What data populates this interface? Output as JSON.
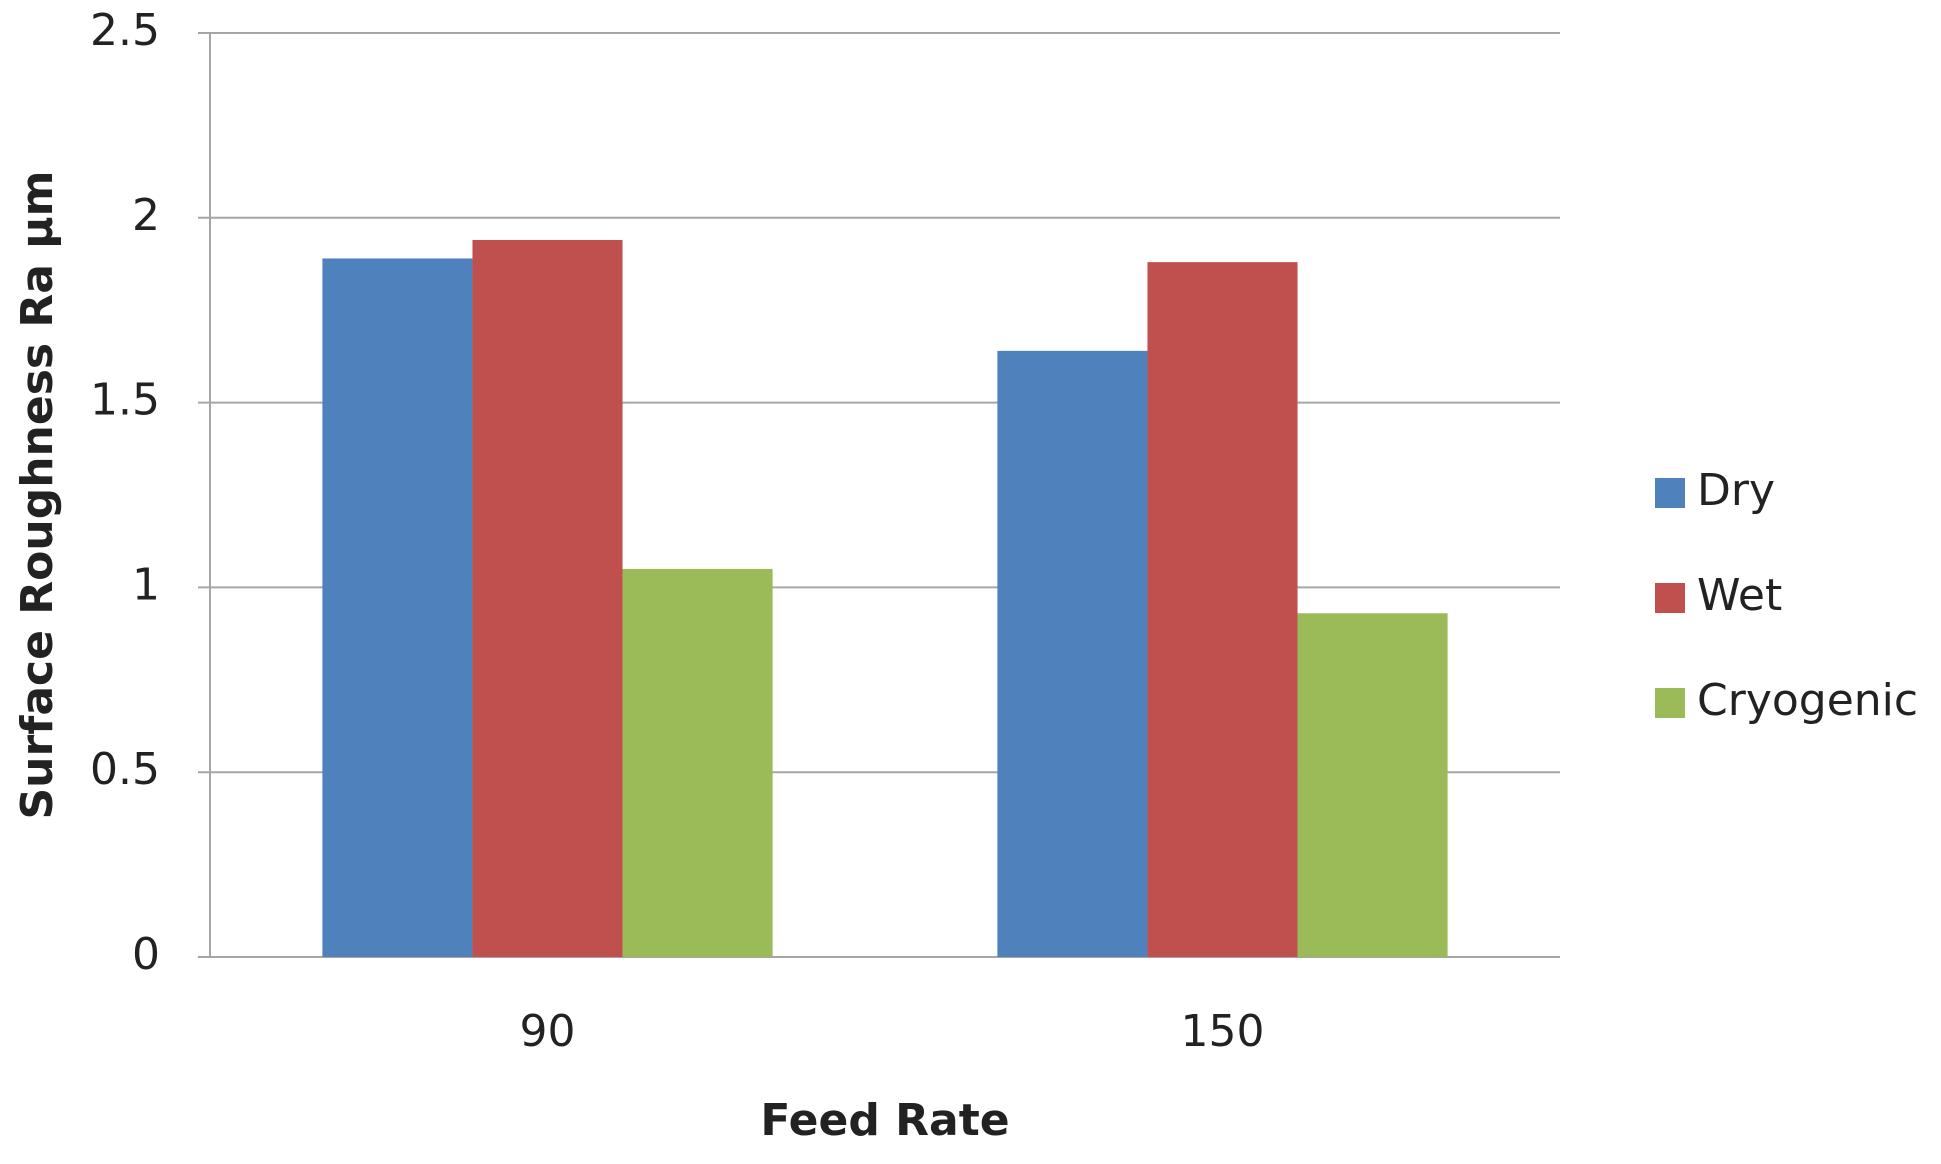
{
  "chart_data": {
    "type": "bar",
    "x_label": "Feed Rate",
    "y_label": "Surface Roughness Ra µm",
    "categories": [
      "90",
      "150"
    ],
    "series": [
      {
        "name": "Dry",
        "color": "#4f81bd",
        "values": [
          1.89,
          1.64
        ]
      },
      {
        "name": "Wet",
        "color": "#c0504d",
        "values": [
          1.94,
          1.88
        ]
      },
      {
        "name": "Cryogenic",
        "color": "#9bbb59",
        "values": [
          1.05,
          0.93
        ]
      }
    ],
    "ylim": [
      0,
      2.5
    ],
    "yticks": [
      0,
      0.5,
      1,
      1.5,
      2,
      2.5
    ],
    "grid": true,
    "legend": "right"
  }
}
